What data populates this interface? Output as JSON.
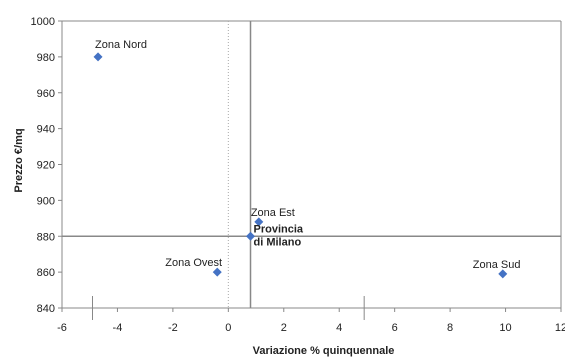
{
  "chart_data": {
    "type": "scatter",
    "title": "",
    "xlabel": "Variazione % quinquennale",
    "ylabel": "Prezzo €/mq",
    "xlim": [
      -6,
      12
    ],
    "ylim": [
      840,
      1000
    ],
    "x_ticks": [
      -6,
      -4,
      -2,
      0,
      2,
      4,
      6,
      8,
      10,
      12
    ],
    "y_ticks": [
      840,
      860,
      880,
      900,
      920,
      940,
      960,
      980,
      1000
    ],
    "grid": false,
    "legend": "none",
    "reference_lines": {
      "x": 0.8,
      "y": 880
    },
    "marker_color": "#4472c4",
    "points": [
      {
        "label": "Zona Nord",
        "x": -4.7,
        "y": 980
      },
      {
        "label": "Zona Est",
        "x": 1.1,
        "y": 888
      },
      {
        "label": "Provincia di Milano",
        "label_lines": [
          "Provincia",
          "di Milano"
        ],
        "x": 0.8,
        "y": 880,
        "bold": true
      },
      {
        "label": "Zona Ovest",
        "x": -0.4,
        "y": 860
      },
      {
        "label": "Zona Sud",
        "x": 9.9,
        "y": 859
      }
    ]
  }
}
